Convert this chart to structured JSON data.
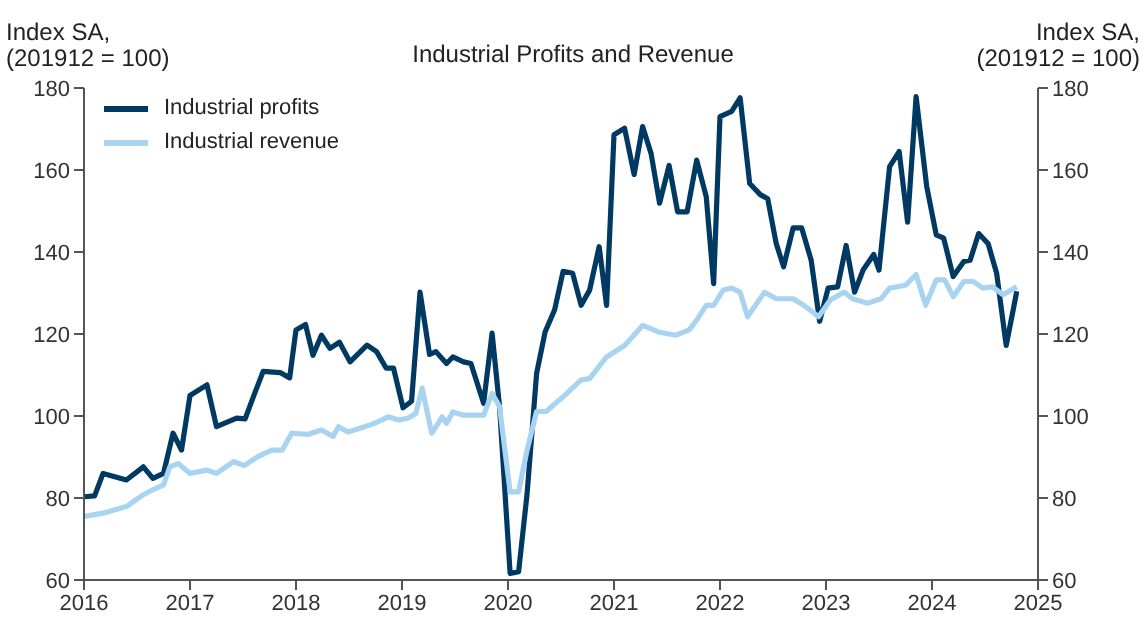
{
  "chart_data": {
    "type": "line",
    "title": "Industrial Profits and Revenue",
    "ylabel": "Index SA,\n(201912 = 100)",
    "y2label": "Index SA,\n(201912 = 100)",
    "xlim": [
      2016,
      2025
    ],
    "xticks": [
      2016,
      2017,
      2018,
      2019,
      2020,
      2021,
      2022,
      2023,
      2024,
      2025
    ],
    "ylim": [
      60,
      180
    ],
    "yticks": [
      60,
      80,
      100,
      120,
      140,
      160,
      180
    ],
    "y2lim": [
      60,
      180
    ],
    "y2ticks": [
      60,
      80,
      100,
      120,
      140,
      160,
      180
    ],
    "legend": "top left",
    "grid": false,
    "line_style": "solid",
    "series": [
      {
        "name": "Industrial profits",
        "color": "#003a63",
        "x": [
          2016.0,
          2016.1,
          2016.18,
          2016.4,
          2016.56,
          2016.65,
          2016.75,
          2016.84,
          2016.92,
          2017.0,
          2017.16,
          2017.25,
          2017.44,
          2017.52,
          2017.61,
          2017.69,
          2017.85,
          2017.94,
          2018.0,
          2018.09,
          2018.16,
          2018.24,
          2018.32,
          2018.41,
          2018.51,
          2018.67,
          2018.76,
          2018.85,
          2018.92,
          2019.01,
          2019.09,
          2019.17,
          2019.26,
          2019.32,
          2019.42,
          2019.48,
          2019.58,
          2019.65,
          2019.77,
          2019.85,
          2019.92,
          2020.02,
          2020.1,
          2020.18,
          2020.27,
          2020.35,
          2020.44,
          2020.52,
          2020.61,
          2020.69,
          2020.77,
          2020.86,
          2020.93,
          2021.0,
          2021.1,
          2021.19,
          2021.27,
          2021.35,
          2021.43,
          2021.52,
          2021.6,
          2021.69,
          2021.78,
          2021.87,
          2021.94,
          2022.0,
          2022.11,
          2022.19,
          2022.28,
          2022.38,
          2022.45,
          2022.53,
          2022.6,
          2022.69,
          2022.77,
          2022.86,
          2022.94,
          2023.02,
          2023.11,
          2023.19,
          2023.27,
          2023.35,
          2023.45,
          2023.5,
          2023.6,
          2023.69,
          2023.77,
          2023.85,
          2023.95,
          2024.04,
          2024.11,
          2024.2,
          2024.3,
          2024.36,
          2024.44,
          2024.53,
          2024.61,
          2024.7,
          2024.8
        ],
        "values": [
          80.3,
          80.5,
          86,
          84.4,
          87.6,
          84.8,
          86,
          95.8,
          91.7,
          105,
          107.6,
          97.4,
          99.5,
          99.3,
          105.5,
          110.9,
          110.6,
          109.3,
          121,
          122.3,
          114.8,
          119.7,
          116.5,
          118,
          113.2,
          117.3,
          115.7,
          111.7,
          111.7,
          102,
          103.6,
          130.2,
          115,
          115.7,
          112.8,
          114.4,
          113.2,
          112.8,
          103.1,
          120.2,
          102.3,
          61.6,
          62,
          81,
          110.4,
          120.5,
          125.9,
          135.3,
          134.8,
          127,
          130.7,
          141.3,
          127,
          168.6,
          170.2,
          158.9,
          170.6,
          164,
          151.9,
          161.1,
          149.8,
          149.8,
          162.4,
          153.5,
          132.3,
          173,
          174.3,
          177.6,
          156.7,
          154,
          153,
          142.1,
          136.4,
          145.9,
          145.9,
          138,
          123.1,
          131.2,
          131.5,
          141.6,
          130.2,
          135.6,
          139.4,
          135.6,
          160.8,
          164.5,
          147.3,
          177.9,
          156,
          144.2,
          143.4,
          134,
          137.7,
          138,
          144.5,
          142,
          134.8,
          117.2,
          130.4
        ]
      },
      {
        "name": "Industrial revenue",
        "color": "#a8d4f2",
        "x": [
          2016.0,
          2016.18,
          2016.4,
          2016.56,
          2016.65,
          2016.75,
          2016.81,
          2016.89,
          2017.0,
          2017.16,
          2017.25,
          2017.41,
          2017.51,
          2017.64,
          2017.77,
          2017.87,
          2017.96,
          2018.11,
          2018.24,
          2018.35,
          2018.4,
          2018.49,
          2018.65,
          2018.74,
          2018.87,
          2018.97,
          2019.06,
          2019.13,
          2019.19,
          2019.28,
          2019.38,
          2019.42,
          2019.48,
          2019.58,
          2019.77,
          2019.85,
          2019.92,
          2020.02,
          2020.1,
          2020.18,
          2020.27,
          2020.36,
          2020.52,
          2020.69,
          2020.77,
          2020.93,
          2021.1,
          2021.27,
          2021.42,
          2021.58,
          2021.71,
          2021.78,
          2021.87,
          2021.94,
          2022.03,
          2022.11,
          2022.19,
          2022.26,
          2022.42,
          2022.53,
          2022.69,
          2022.79,
          2022.93,
          2023.04,
          2023.17,
          2023.25,
          2023.39,
          2023.52,
          2023.6,
          2023.75,
          2023.85,
          2023.94,
          2024.04,
          2024.12,
          2024.2,
          2024.3,
          2024.39,
          2024.48,
          2024.57,
          2024.67,
          2024.8
        ],
        "values": [
          75.5,
          76.3,
          77.9,
          80.8,
          82,
          83.2,
          87.6,
          88.4,
          86,
          86.8,
          86,
          88.9,
          87.9,
          90.1,
          91.7,
          91.7,
          95.8,
          95.5,
          96.6,
          95,
          97.4,
          96.1,
          97.4,
          98.2,
          99.8,
          99,
          99.5,
          100.6,
          106.8,
          95.8,
          99.8,
          98.2,
          101,
          100.2,
          100.2,
          105.5,
          102.3,
          81.5,
          81.5,
          91.7,
          101.1,
          101.1,
          104.7,
          108.8,
          109.1,
          114.4,
          117.2,
          122.1,
          120.5,
          119.7,
          121,
          123.4,
          127,
          127,
          130.7,
          131.2,
          130.2,
          124.2,
          130.2,
          128.6,
          128.6,
          127,
          124.2,
          128.3,
          130.2,
          128.6,
          127.5,
          128.6,
          131.2,
          131.9,
          134.5,
          127,
          133.2,
          133.2,
          129.1,
          132.8,
          132.8,
          131.2,
          131.5,
          129.6,
          131.5
        ]
      }
    ]
  }
}
